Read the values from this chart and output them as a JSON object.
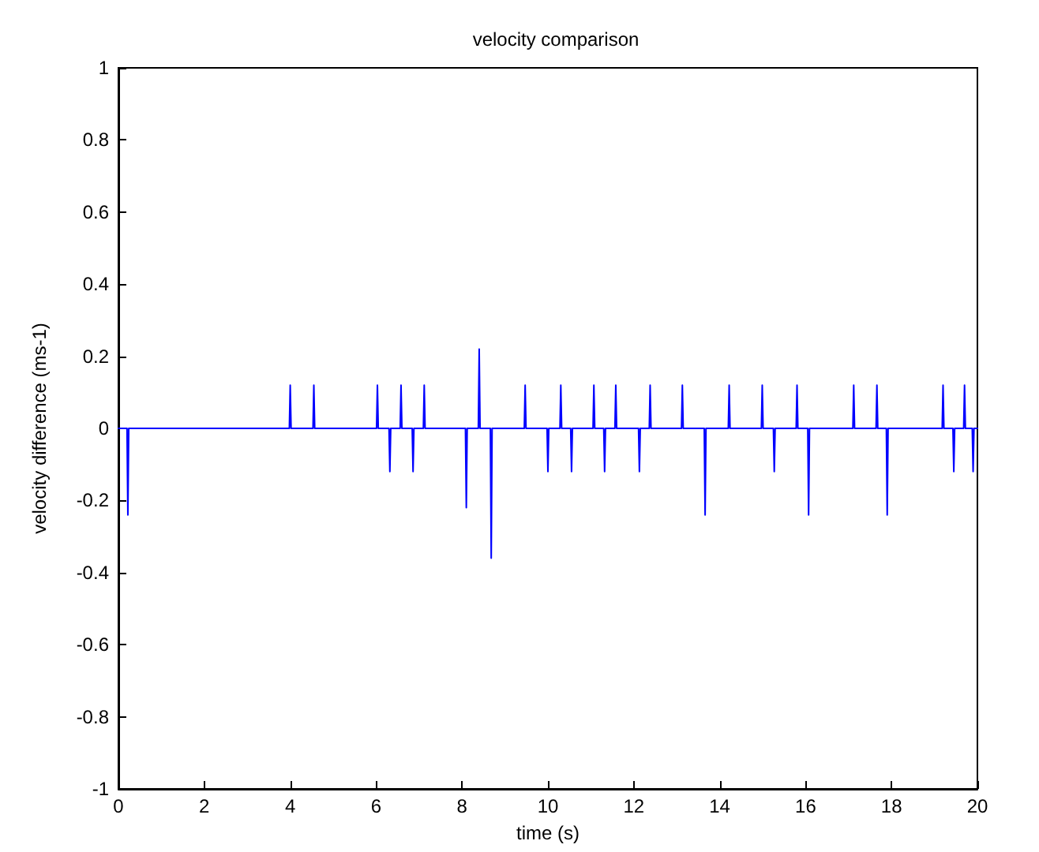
{
  "chart_data": {
    "type": "line",
    "title": "velocity comparison",
    "xlabel": "time (s)",
    "ylabel": "velocity difference (ms-1)",
    "series": [
      {
        "color": "#0000ff",
        "x": [
          0,
          0.2,
          0.22,
          0.24,
          3.98,
          4.0,
          4.02,
          4.53,
          4.55,
          4.57,
          6.01,
          6.03,
          6.05,
          6.3,
          6.32,
          6.34,
          6.56,
          6.58,
          6.6,
          6.84,
          6.86,
          6.88,
          7.1,
          7.12,
          7.14,
          8.08,
          8.1,
          8.12,
          8.38,
          8.4,
          8.42,
          8.66,
          8.68,
          8.7,
          9.45,
          9.47,
          9.49,
          9.98,
          10.0,
          10.02,
          10.28,
          10.3,
          10.32,
          10.53,
          10.55,
          10.57,
          11.05,
          11.07,
          11.09,
          11.3,
          11.32,
          11.34,
          11.56,
          11.58,
          11.6,
          12.11,
          12.13,
          12.15,
          12.36,
          12.38,
          12.4,
          13.11,
          13.13,
          13.15,
          13.64,
          13.66,
          13.68,
          14.2,
          14.22,
          14.24,
          14.97,
          14.99,
          15.01,
          15.25,
          15.27,
          15.29,
          15.78,
          15.8,
          15.82,
          16.05,
          16.07,
          16.09,
          17.1,
          17.12,
          17.14,
          17.64,
          17.66,
          17.68,
          17.88,
          17.9,
          17.92,
          19.18,
          19.2,
          19.22,
          19.43,
          19.45,
          19.47,
          19.68,
          19.7,
          19.72,
          19.88,
          19.9,
          19.92,
          20
        ],
        "values": [
          0,
          0,
          -0.24,
          0,
          0,
          0.12,
          0,
          0,
          0.12,
          0,
          0,
          0.12,
          0,
          0,
          -0.12,
          0,
          0,
          0.12,
          0,
          0,
          -0.12,
          0,
          0,
          0.12,
          0,
          0,
          -0.22,
          0,
          0,
          0.22,
          0,
          0,
          -0.36,
          0,
          0,
          0.12,
          0,
          0,
          -0.12,
          0,
          0,
          0.12,
          0,
          0,
          -0.12,
          0,
          0,
          0.12,
          0,
          0,
          -0.12,
          0,
          0,
          0.12,
          0,
          0,
          -0.12,
          0,
          0,
          0.12,
          0,
          0,
          0.12,
          0,
          0,
          -0.24,
          0,
          0,
          0.12,
          0,
          0,
          0.12,
          0,
          0,
          -0.12,
          0,
          0,
          0.12,
          0,
          0,
          -0.24,
          0,
          0,
          0.12,
          0,
          0,
          0.12,
          0,
          0,
          -0.24,
          0,
          0,
          0.12,
          0,
          0,
          -0.12,
          0,
          0,
          0.12,
          0,
          0,
          -0.12,
          0,
          0
        ]
      }
    ],
    "xlim": [
      0,
      20
    ],
    "xticks": [
      0,
      2,
      4,
      6,
      8,
      10,
      12,
      14,
      16,
      18,
      20
    ],
    "ylim": [
      -1,
      1
    ],
    "yticks": [
      -1,
      -0.8,
      -0.6,
      -0.4,
      -0.2,
      0,
      0.2,
      0.4,
      0.6,
      0.8,
      1
    ],
    "marker": "none",
    "line_style": "solid"
  }
}
